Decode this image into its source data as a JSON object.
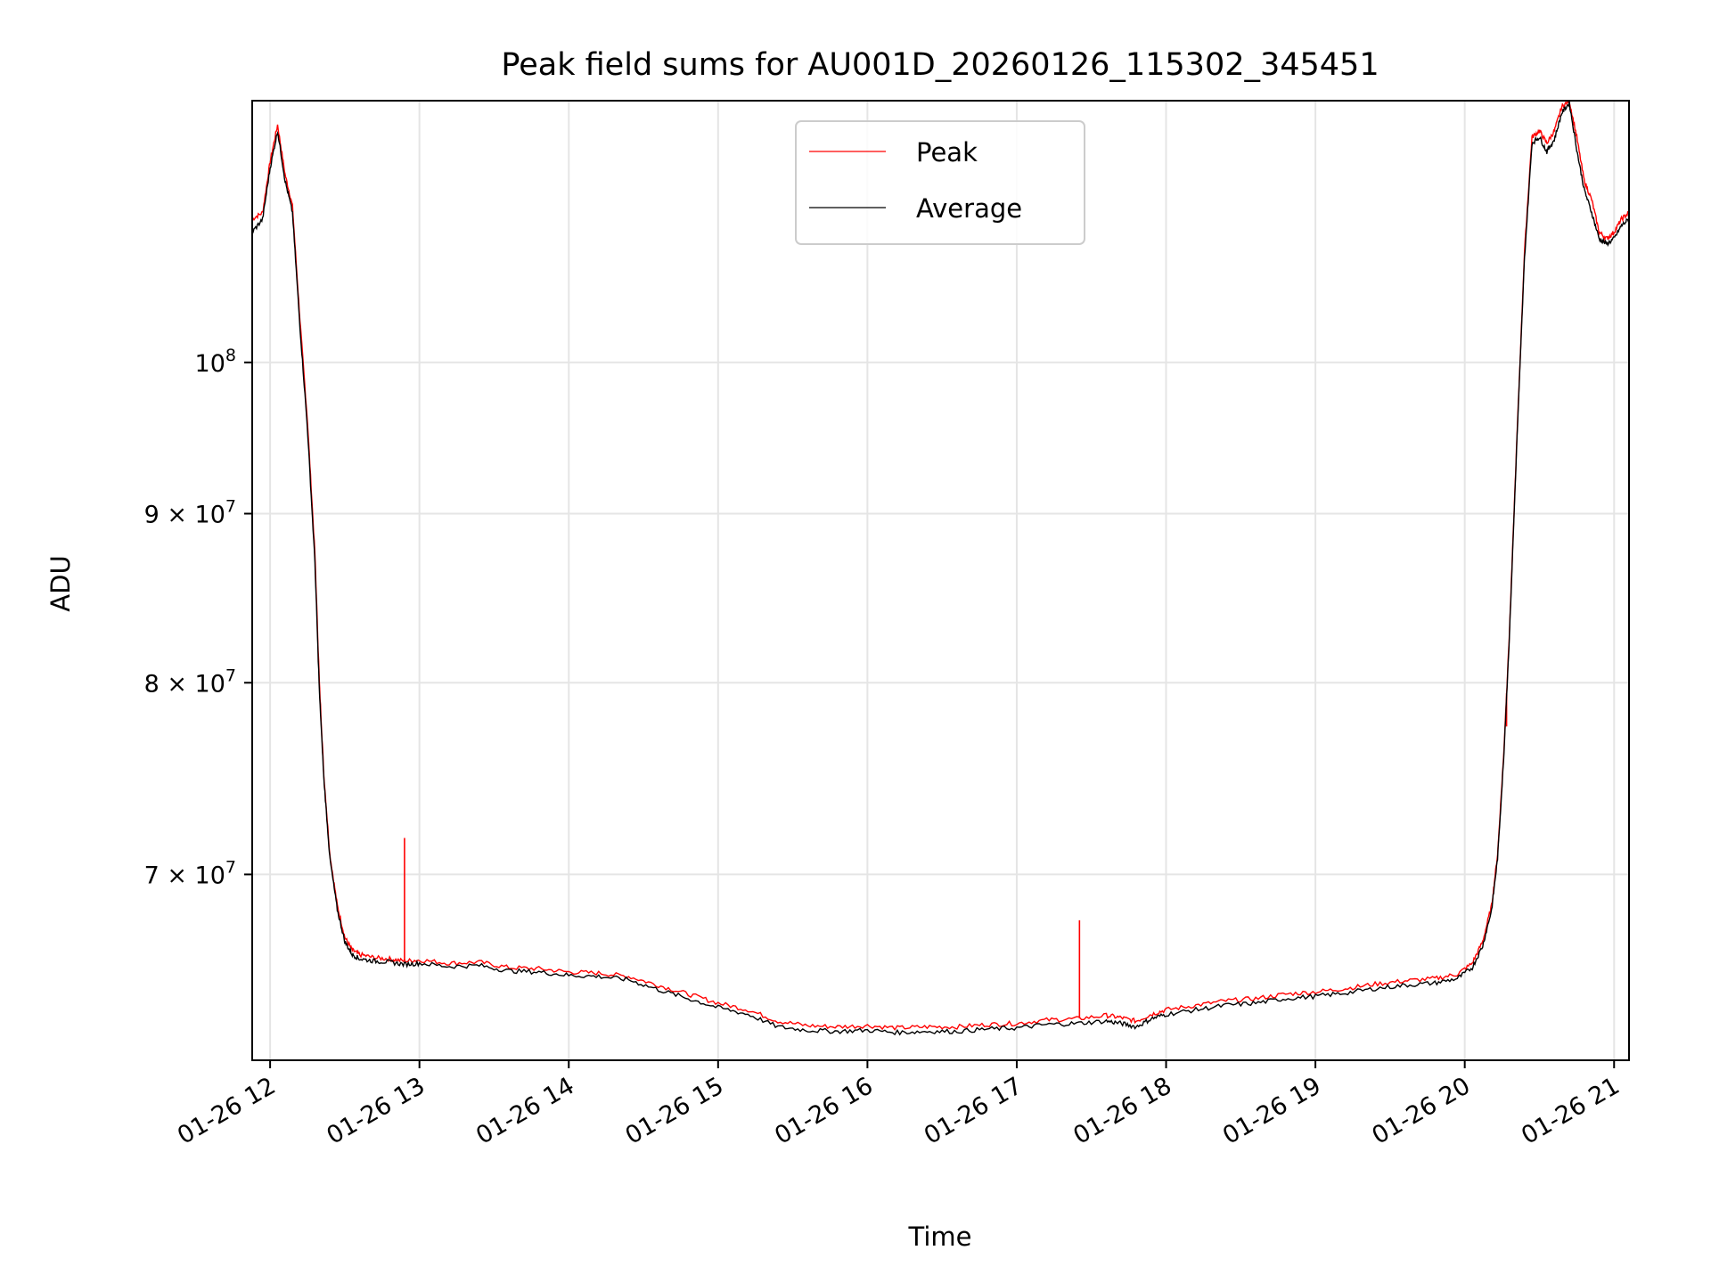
{
  "chart_data": {
    "type": "line",
    "title": "Peak field sums for AU001D_20260126_115302_345451",
    "xlabel": "Time",
    "ylabel": "ADU",
    "x_unit": "hours on 2026-01-26",
    "xlim": [
      11.88,
      21.1
    ],
    "yscale": "log",
    "ylim": [
      61500000,
      120000000
    ],
    "grid": true,
    "legend_position": "top-center",
    "x_ticks": [
      {
        "value": 12,
        "label": "01-26 12"
      },
      {
        "value": 13,
        "label": "01-26 13"
      },
      {
        "value": 14,
        "label": "01-26 14"
      },
      {
        "value": 15,
        "label": "01-26 15"
      },
      {
        "value": 16,
        "label": "01-26 16"
      },
      {
        "value": 17,
        "label": "01-26 17"
      },
      {
        "value": 18,
        "label": "01-26 18"
      },
      {
        "value": 19,
        "label": "01-26 19"
      },
      {
        "value": 20,
        "label": "01-26 20"
      },
      {
        "value": 21,
        "label": "01-26 21"
      }
    ],
    "y_ticks": [
      {
        "value": 100000000,
        "base": "10",
        "exp": "8",
        "mant": ""
      },
      {
        "value": 90000000,
        "base": "10",
        "exp": "7",
        "mant": "9"
      },
      {
        "value": 80000000,
        "base": "10",
        "exp": "7",
        "mant": "8"
      },
      {
        "value": 70000000,
        "base": "10",
        "exp": "7",
        "mant": "7"
      }
    ],
    "series": [
      {
        "name": "Peak",
        "color": "#ff0000",
        "x": [
          11.88,
          11.95,
          12.0,
          12.05,
          12.1,
          12.15,
          12.2,
          12.25,
          12.3,
          12.33,
          12.36,
          12.4,
          12.45,
          12.5,
          12.55,
          12.6,
          12.7,
          12.8,
          12.9,
          13.0,
          13.2,
          13.4,
          13.6,
          13.8,
          14.0,
          14.2,
          14.4,
          14.6,
          14.8,
          15.0,
          15.2,
          15.4,
          15.6,
          15.8,
          16.0,
          16.2,
          16.4,
          16.6,
          16.8,
          17.0,
          17.2,
          17.4,
          17.6,
          17.7,
          17.8,
          17.9,
          18.0,
          18.2,
          18.4,
          18.6,
          18.8,
          19.0,
          19.2,
          19.4,
          19.6,
          19.8,
          19.95,
          20.05,
          20.12,
          20.18,
          20.22,
          20.26,
          20.3,
          20.35,
          20.4,
          20.45,
          20.5,
          20.55,
          20.6,
          20.65,
          20.7,
          20.75,
          20.8,
          20.85,
          20.9,
          20.95,
          21.0,
          21.05,
          21.1
        ],
        "y": [
          110500000,
          111000000,
          115000000,
          118000000,
          114000000,
          111500000,
          103000000,
          96000000,
          87500000,
          80000000,
          75000000,
          71000000,
          68500000,
          67000000,
          66400000,
          66200000,
          66050000,
          66000000,
          65900000,
          65950000,
          65800000,
          65850000,
          65600000,
          65550000,
          65400000,
          65350000,
          65200000,
          64800000,
          64400000,
          64000000,
          63700000,
          63200000,
          63000000,
          62950000,
          63000000,
          62900000,
          62950000,
          62950000,
          63050000,
          63100000,
          63250000,
          63300000,
          63450000,
          63350000,
          63200000,
          63500000,
          63700000,
          63900000,
          64100000,
          64200000,
          64400000,
          64500000,
          64650000,
          64850000,
          65000000,
          65100000,
          65300000,
          65800000,
          66800000,
          68500000,
          71000000,
          76000000,
          83000000,
          95000000,
          108000000,
          117000000,
          117500000,
          116500000,
          117500000,
          119500000,
          120000000,
          117000000,
          113500000,
          112000000,
          109500000,
          109000000,
          109500000,
          110500000,
          111000000
        ],
        "spikes": [
          {
            "x": 12.9,
            "y": 71800000
          },
          {
            "x": 17.42,
            "y": 67800000
          },
          {
            "x": 20.28,
            "y": 77600000
          }
        ]
      },
      {
        "name": "Average",
        "color": "#000000",
        "x": [
          11.88,
          11.95,
          12.0,
          12.05,
          12.1,
          12.15,
          12.2,
          12.25,
          12.3,
          12.33,
          12.36,
          12.4,
          12.45,
          12.5,
          12.55,
          12.6,
          12.7,
          12.8,
          12.9,
          13.0,
          13.2,
          13.4,
          13.6,
          13.8,
          14.0,
          14.2,
          14.4,
          14.6,
          14.8,
          15.0,
          15.2,
          15.4,
          15.6,
          15.8,
          16.0,
          16.2,
          16.4,
          16.6,
          16.8,
          17.0,
          17.2,
          17.4,
          17.6,
          17.7,
          17.8,
          17.9,
          18.0,
          18.2,
          18.4,
          18.6,
          18.8,
          19.0,
          19.2,
          19.4,
          19.6,
          19.8,
          19.95,
          20.05,
          20.12,
          20.18,
          20.22,
          20.26,
          20.3,
          20.35,
          20.4,
          20.45,
          20.5,
          20.55,
          20.6,
          20.65,
          20.7,
          20.75,
          20.8,
          20.85,
          20.9,
          20.95,
          21.0,
          21.05,
          21.1
        ],
        "y": [
          109500000,
          110500000,
          114500000,
          117500000,
          113500000,
          111000000,
          102500000,
          95500000,
          87000000,
          79500000,
          74800000,
          70800000,
          68300000,
          66800000,
          66200000,
          66000000,
          65900000,
          65850000,
          65750000,
          65800000,
          65650000,
          65700000,
          65450000,
          65400000,
          65250000,
          65200000,
          65050000,
          64600000,
          64200000,
          63800000,
          63500000,
          62950000,
          62800000,
          62750000,
          62800000,
          62700000,
          62750000,
          62750000,
          62850000,
          62900000,
          63050000,
          63100000,
          63200000,
          63100000,
          62950000,
          63300000,
          63500000,
          63700000,
          63900000,
          64000000,
          64200000,
          64300000,
          64450000,
          64650000,
          64800000,
          64900000,
          65100000,
          65600000,
          66600000,
          68300000,
          70800000,
          75800000,
          82800000,
          94800000,
          107500000,
          116500000,
          117000000,
          115800000,
          116800000,
          119000000,
          119800000,
          116000000,
          112800000,
          111000000,
          109000000,
          108600000,
          109000000,
          110000000,
          110500000
        ],
        "spikes": []
      }
    ]
  }
}
